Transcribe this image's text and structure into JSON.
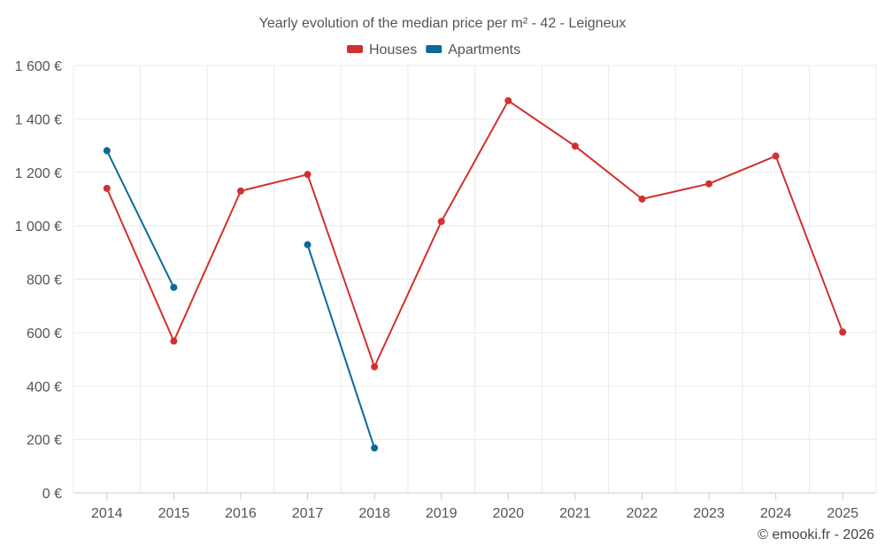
{
  "chart_data": {
    "type": "line",
    "title": "Yearly evolution of the median price per m² - 42 - Leigneux",
    "categories": [
      "2014",
      "2015",
      "2016",
      "2017",
      "2018",
      "2019",
      "2020",
      "2021",
      "2022",
      "2023",
      "2024",
      "2025"
    ],
    "series": [
      {
        "name": "Houses",
        "color": "#d32f2f",
        "values": [
          1140,
          568,
          1130,
          1192,
          472,
          1016,
          1468,
          1298,
          1100,
          1157,
          1261,
          602
        ]
      },
      {
        "name": "Apartments",
        "color": "#0a6a9a",
        "values": [
          1281,
          769,
          null,
          929,
          168,
          null,
          null,
          null,
          null,
          null,
          null,
          null
        ]
      }
    ],
    "y_ticks": [
      0,
      200,
      400,
      600,
      800,
      1000,
      1200,
      1400,
      1600
    ],
    "y_tick_labels": [
      "0 €",
      "200 €",
      "400 €",
      "600 €",
      "800 €",
      "1 000 €",
      "1 200 €",
      "1 400 €",
      "1 600 €"
    ],
    "ylim": [
      0,
      1600
    ],
    "grid": true,
    "legend_position": "top-center",
    "xlabel": "",
    "ylabel": ""
  },
  "credit": "© emooki.fr - 2026"
}
